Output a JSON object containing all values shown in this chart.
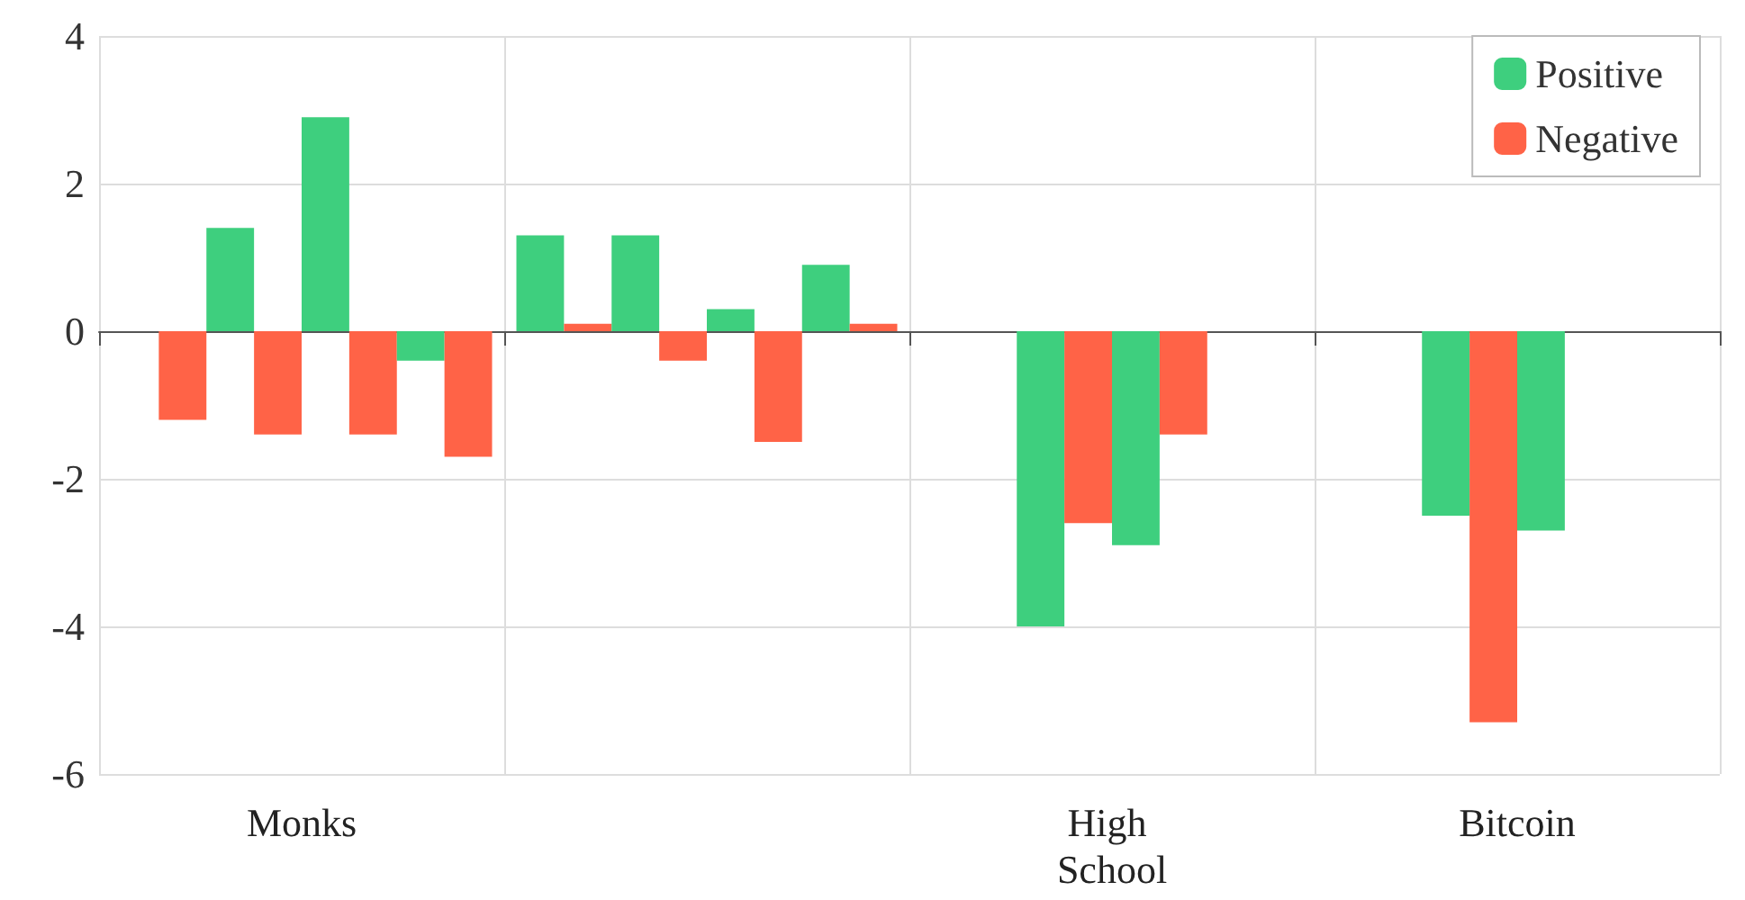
{
  "chart_data": {
    "type": "bar",
    "categories": [
      "Monks",
      null,
      "High School",
      "Bitcoin"
    ],
    "series": [
      {
        "name": "Positive",
        "color": "#3ecf7e",
        "values": [
          null,
          1.3,
          null,
          null
        ]
      },
      {
        "name": "Negative",
        "color": "#ff6347",
        "values": [
          -1.2,
          0.1,
          null,
          null
        ]
      },
      {
        "color": "#3ecf7e",
        "values": [
          1.4,
          1.3,
          -4.0,
          -2.5
        ]
      },
      {
        "color": "#ff6347",
        "values": [
          -1.4,
          -0.4,
          -2.6,
          -5.3
        ]
      },
      {
        "color": "#3ecf7e",
        "values": [
          2.9,
          0.3,
          -2.9,
          -2.7
        ]
      },
      {
        "color": "#ff6347",
        "values": [
          -1.4,
          -1.5,
          -1.4,
          null
        ]
      },
      {
        "color": "#3ecf7e",
        "values": [
          -0.4,
          0.9,
          null,
          null
        ]
      },
      {
        "color": "#ff6347",
        "values": [
          -1.7,
          0.1,
          null,
          null
        ]
      }
    ],
    "ylim": [
      -6,
      4
    ],
    "yticks": [
      -6,
      -4,
      -2,
      0,
      2,
      4
    ],
    "grid": true,
    "legend": "top right"
  }
}
